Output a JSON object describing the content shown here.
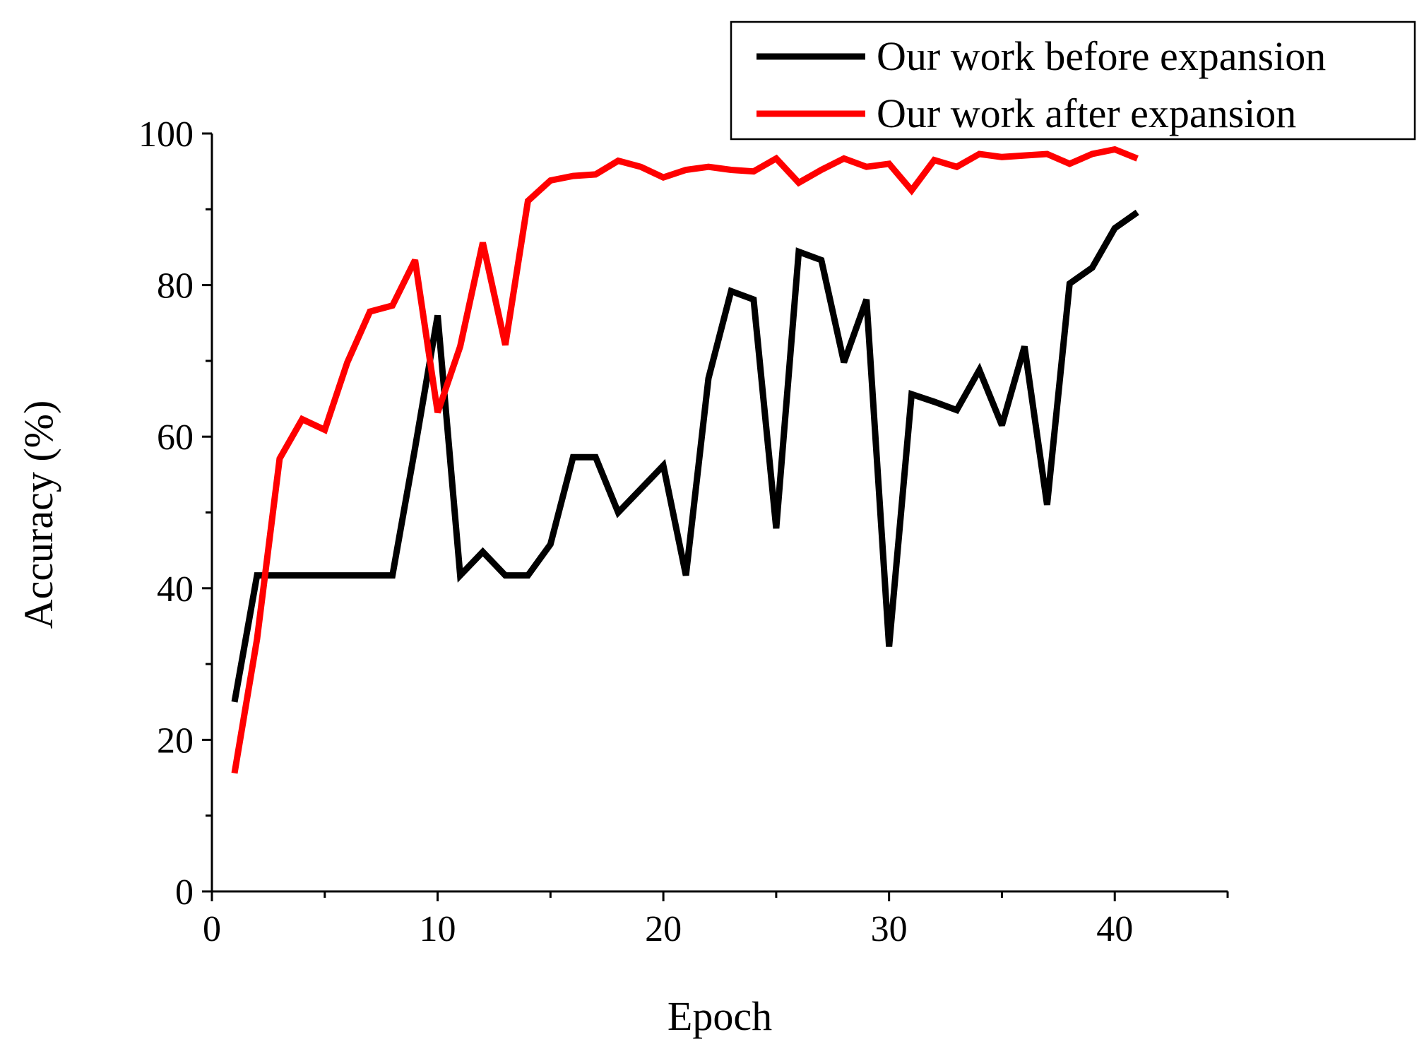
{
  "chart_data": {
    "type": "line",
    "title": "",
    "xlabel": "Epoch",
    "ylabel": "Accuracy (%)",
    "xlim": [
      0,
      45
    ],
    "ylim": [
      0,
      100
    ],
    "x_ticks": [
      0,
      10,
      20,
      30,
      40
    ],
    "y_ticks": [
      0,
      20,
      40,
      60,
      80,
      100
    ],
    "grid": false,
    "legend_position": "top-right",
    "x": [
      1,
      2,
      3,
      4,
      5,
      6,
      7,
      8,
      9,
      10,
      11,
      12,
      13,
      14,
      15,
      16,
      17,
      18,
      19,
      20,
      21,
      22,
      23,
      24,
      25,
      26,
      27,
      28,
      29,
      30,
      31,
      32,
      33,
      34,
      35,
      36,
      37,
      38,
      39,
      40,
      41
    ],
    "series": [
      {
        "name": "Our work before expansion",
        "color": "#000000",
        "values": [
          25,
          41.7,
          41.7,
          41.7,
          41.7,
          41.7,
          41.7,
          41.7,
          58.5,
          76,
          41.7,
          44.8,
          41.7,
          41.7,
          45.8,
          57.3,
          57.3,
          50,
          53.1,
          56.2,
          41.7,
          67.7,
          79.2,
          78.1,
          47.9,
          84.4,
          83.3,
          69.8,
          78.1,
          32.3,
          65.6,
          64.6,
          63.5,
          68.8,
          61.5,
          71.9,
          51,
          80.2,
          82.3,
          87.5,
          89.6
        ]
      },
      {
        "name": "Our work after expansion",
        "color": "#ff0000",
        "values": [
          15.6,
          33.3,
          57.1,
          62.3,
          60.9,
          69.8,
          76.5,
          77.3,
          83.3,
          63.2,
          71.9,
          85.6,
          72.1,
          91.1,
          93.8,
          94.4,
          94.6,
          96.4,
          95.6,
          94.2,
          95.2,
          95.6,
          95.2,
          95,
          96.7,
          93.5,
          95.2,
          96.7,
          95.6,
          96,
          92.5,
          96.5,
          95.6,
          97.3,
          96.9,
          97.1,
          97.3,
          96,
          97.3,
          97.9,
          96.7
        ]
      }
    ]
  }
}
